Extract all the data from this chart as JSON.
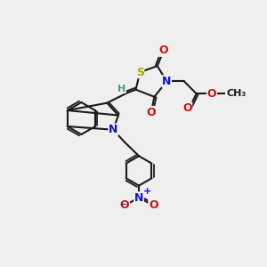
{
  "bg_color": "#efefef",
  "atom_colors": {
    "C": "#1a1a1a",
    "H": "#4a9a8a",
    "N": "#1111cc",
    "O": "#cc1111",
    "S": "#aaaa00",
    "plus": "#1111cc",
    "minus": "#1111cc"
  },
  "bond_color": "#1a1a1a",
  "bond_width": 1.5,
  "font_size_atom": 9
}
